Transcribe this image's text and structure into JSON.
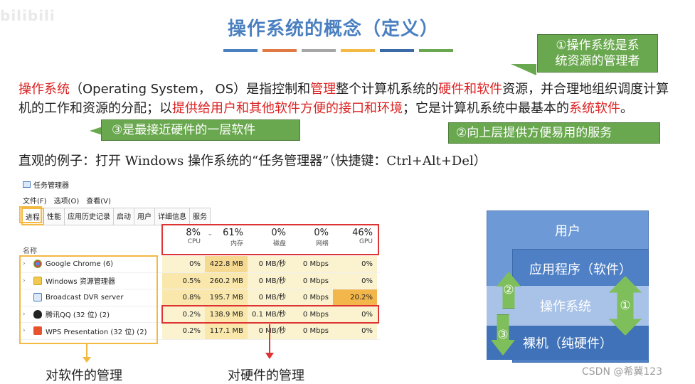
{
  "logo_text": "bilibili",
  "title": "操作系统的概念（定义）",
  "colors": {
    "title": "#4a7fc0",
    "callout": "#6aa84f",
    "highlight_red": "#d22",
    "outline_orange": "#f4b942",
    "outline_red": "#d33",
    "bars": [
      "#4a7fc0",
      "#e07a45",
      "#a6a6a6",
      "#f4b942",
      "#3b6aa8",
      "#6aa84f"
    ]
  },
  "callouts": {
    "c1_line1": "①操作系统是系",
    "c1_line2": "统资源的管理者",
    "c2": "②向上层提供方便易用的服务",
    "c3": "③是最接近硬件的一层软件"
  },
  "paragraph": {
    "p1": "操作系统",
    "p2": "（Operating System， OS）是指控制和",
    "p3": "管理",
    "p4": "整个计算机系统的",
    "p5": "硬件和软件",
    "p6": "资源，并合理地组织调度计算机的工作和资源的分配；以",
    "p7": "提供给用户和其他软件方便的接口和环境",
    "p8": "；它是计算机系统中最基本的",
    "p9": "系统软件",
    "p10": "。"
  },
  "example": "直观的例子：打开 Windows 操作系统的“任务管理器”（快捷键：Ctrl+Alt+Del）",
  "task_manager": {
    "title": "任务管理器",
    "menu": [
      "文件(F)",
      "选项(O)",
      "查看(V)"
    ],
    "tabs": [
      "进程",
      "性能",
      "应用历史记录",
      "启动",
      "用户",
      "详细信息",
      "服务"
    ],
    "name_header": "名称",
    "columns": [
      {
        "pct": "8%",
        "label": "CPU"
      },
      {
        "pct": "61%",
        "label": "内存"
      },
      {
        "pct": "0%",
        "label": "磁盘"
      },
      {
        "pct": "0%",
        "label": "网络"
      },
      {
        "pct": "46%",
        "label": "GPU"
      }
    ],
    "rows": [
      {
        "name": "Google Chrome (6)",
        "cpu": "0%",
        "mem": "422.8 MB",
        "disk": "0 MB/秒",
        "net": "0 Mbps",
        "gpu": "0%"
      },
      {
        "name": "Windows 资源管理器",
        "cpu": "0.5%",
        "mem": "260.2 MB",
        "disk": "0 MB/秒",
        "net": "0 Mbps",
        "gpu": "0%"
      },
      {
        "name": "Broadcast DVR server",
        "cpu": "0.8%",
        "mem": "195.7 MB",
        "disk": "0 MB/秒",
        "net": "0 Mbps",
        "gpu": "20.2%"
      },
      {
        "name": "腾讯QQ (32 位) (2)",
        "cpu": "0.2%",
        "mem": "138.9 MB",
        "disk": "0.1 MB/秒",
        "net": "0 Mbps",
        "gpu": "0%"
      },
      {
        "name": "WPS Presentation (32 位) (2)",
        "cpu": "0.2%",
        "mem": "117.1 MB",
        "disk": "0 MB/秒",
        "net": "0 Mbps",
        "gpu": "0%"
      }
    ]
  },
  "captions": {
    "software": "对软件的管理",
    "hardware": "对硬件的管理"
  },
  "diagram": {
    "user": "用户",
    "app": "应用程序（软件）",
    "os": "操作系统",
    "hw": "裸机（纯硬件）",
    "a1": "①",
    "a2": "②",
    "a3": "③"
  },
  "watermark": "CSDN @希冀123"
}
